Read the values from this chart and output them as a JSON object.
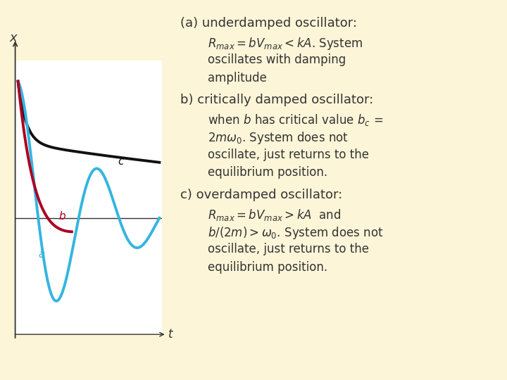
{
  "background_color": "#fdf5d8",
  "graph_bg_color": "#ffffff",
  "curve_a_color": "#35b5e0",
  "curve_b_color": "#aa0022",
  "curve_c_color": "#111111",
  "axis_color": "#333333",
  "text_color": "#333333",
  "label_a": "a",
  "label_b": "b",
  "label_c": "c",
  "xlabel_t": "t",
  "ylabel_x": "x",
  "font_size_header": 13,
  "font_size_body": 12
}
